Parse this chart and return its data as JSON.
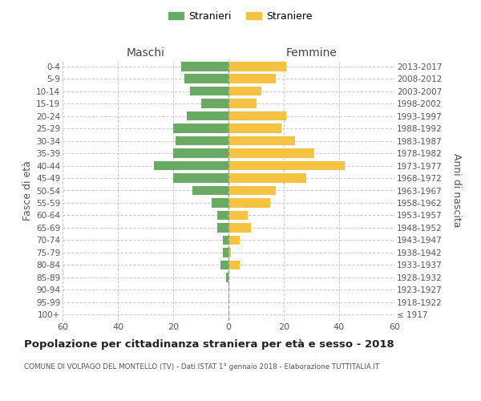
{
  "age_groups": [
    "100+",
    "95-99",
    "90-94",
    "85-89",
    "80-84",
    "75-79",
    "70-74",
    "65-69",
    "60-64",
    "55-59",
    "50-54",
    "45-49",
    "40-44",
    "35-39",
    "30-34",
    "25-29",
    "20-24",
    "15-19",
    "10-14",
    "5-9",
    "0-4"
  ],
  "birth_years": [
    "≤ 1917",
    "1918-1922",
    "1923-1927",
    "1928-1932",
    "1933-1937",
    "1938-1942",
    "1943-1947",
    "1948-1952",
    "1953-1957",
    "1958-1962",
    "1963-1967",
    "1968-1972",
    "1973-1977",
    "1978-1982",
    "1983-1987",
    "1988-1992",
    "1993-1997",
    "1998-2002",
    "2003-2007",
    "2008-2012",
    "2013-2017"
  ],
  "males": [
    0,
    0,
    0,
    1,
    3,
    2,
    2,
    4,
    4,
    6,
    13,
    20,
    27,
    20,
    19,
    20,
    15,
    10,
    14,
    16,
    17
  ],
  "females": [
    0,
    0,
    0,
    0,
    4,
    1,
    4,
    8,
    7,
    15,
    17,
    28,
    42,
    31,
    24,
    19,
    21,
    10,
    12,
    17,
    21
  ],
  "male_color": "#6aaa64",
  "female_color": "#f5c242",
  "background_color": "#ffffff",
  "grid_color": "#cccccc",
  "title": "Popolazione per cittadinanza straniera per età e sesso - 2018",
  "subtitle": "COMUNE DI VOLPAGO DEL MONTELLO (TV) - Dati ISTAT 1° gennaio 2018 - Elaborazione TUTTITALIA.IT",
  "xlabel_left": "Maschi",
  "xlabel_right": "Femmine",
  "ylabel_left": "Fasce di età",
  "ylabel_right": "Anni di nascita",
  "legend_male": "Stranieri",
  "legend_female": "Straniere",
  "xlim": 60,
  "xtick_positions": [
    -60,
    -40,
    -20,
    0,
    20,
    40,
    60
  ],
  "xtick_labels": [
    "60",
    "40",
    "20",
    "0",
    "20",
    "40",
    "60"
  ]
}
